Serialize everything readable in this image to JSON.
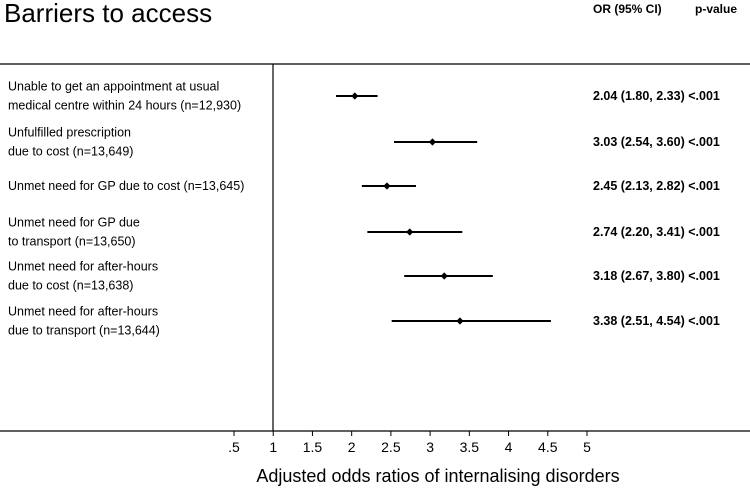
{
  "chart_data": {
    "type": "forest",
    "title": "Barriers to access",
    "xlabel": "Adjusted odds ratios of internalising disorders",
    "column_headers": {
      "estimate": "OR (95% CI)",
      "pvalue": "p-value"
    },
    "x_ticks": [
      ".5",
      "1",
      "1.5",
      "2",
      "2.5",
      "3",
      "3.5",
      "4",
      "4.5",
      "5"
    ],
    "xlim": [
      0.5,
      5
    ],
    "reference_line": 1,
    "rows": [
      {
        "label_lines": [
          "Unable to get an appointment at usual",
          "medical centre within 24 hours (n=12,930)"
        ],
        "or": 2.04,
        "ci_low": 1.8,
        "ci_high": 2.33,
        "estimate_text": "2.04 (1.80, 2.33)",
        "p_text": "<.001"
      },
      {
        "label_lines": [
          "Unfulfilled prescription",
          "due to cost (n=13,649)"
        ],
        "or": 3.03,
        "ci_low": 2.54,
        "ci_high": 3.6,
        "estimate_text": "3.03 (2.54, 3.60)",
        "p_text": "<.001"
      },
      {
        "label_lines": [
          "Unmet need for GP due to cost (n=13,645)"
        ],
        "or": 2.45,
        "ci_low": 2.13,
        "ci_high": 2.82,
        "estimate_text": "2.45 (2.13, 2.82)",
        "p_text": "<.001"
      },
      {
        "label_lines": [
          "Unmet need for GP due",
          "to transport (n=13,650)"
        ],
        "or": 2.74,
        "ci_low": 2.2,
        "ci_high": 3.41,
        "estimate_text": "2.74 (2.20, 3.41)",
        "p_text": "<.001"
      },
      {
        "label_lines": [
          "Unmet need for after-hours",
          "due to cost (n=13,638)"
        ],
        "or": 3.18,
        "ci_low": 2.67,
        "ci_high": 3.8,
        "estimate_text": "3.18 (2.67, 3.80)",
        "p_text": "<.001"
      },
      {
        "label_lines": [
          "Unmet need for after-hours",
          "due to transport (n=13,644)"
        ],
        "or": 3.38,
        "ci_low": 2.51,
        "ci_high": 4.54,
        "estimate_text": "3.38 (2.51, 4.54)",
        "p_text": "<.001"
      }
    ]
  }
}
